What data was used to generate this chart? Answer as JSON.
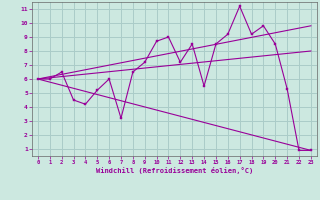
{
  "xlabel": "Windchill (Refroidissement éolien,°C)",
  "background_color": "#cce8e0",
  "grid_color": "#aaccc8",
  "line_color": "#990099",
  "tick_color": "#990099",
  "x_ticks": [
    0,
    1,
    2,
    3,
    4,
    5,
    6,
    7,
    8,
    9,
    10,
    11,
    12,
    13,
    14,
    15,
    16,
    17,
    18,
    19,
    20,
    21,
    22,
    23
  ],
  "y_ticks": [
    1,
    2,
    3,
    4,
    5,
    6,
    7,
    8,
    9,
    10,
    11
  ],
  "xlim": [
    -0.5,
    23.5
  ],
  "ylim": [
    0.5,
    11.5
  ],
  "series": {
    "zigzag": {
      "x": [
        0,
        1,
        2,
        3,
        4,
        5,
        6,
        7,
        8,
        9,
        10,
        11,
        12,
        13,
        14,
        15,
        16,
        17,
        18,
        19,
        20,
        21,
        22,
        23
      ],
      "y": [
        6.0,
        6.0,
        6.5,
        4.5,
        4.2,
        5.2,
        6.0,
        3.2,
        6.5,
        7.2,
        8.7,
        9.0,
        7.2,
        8.5,
        5.5,
        8.5,
        9.2,
        11.2,
        9.2,
        9.8,
        8.5,
        5.3,
        0.9,
        0.9
      ]
    },
    "upper_trend": {
      "x": [
        0,
        23
      ],
      "y": [
        6.0,
        9.8
      ]
    },
    "middle_trend": {
      "x": [
        0,
        23
      ],
      "y": [
        6.0,
        8.0
      ]
    },
    "lower_trend": {
      "x": [
        0,
        23
      ],
      "y": [
        6.0,
        0.9
      ]
    }
  }
}
